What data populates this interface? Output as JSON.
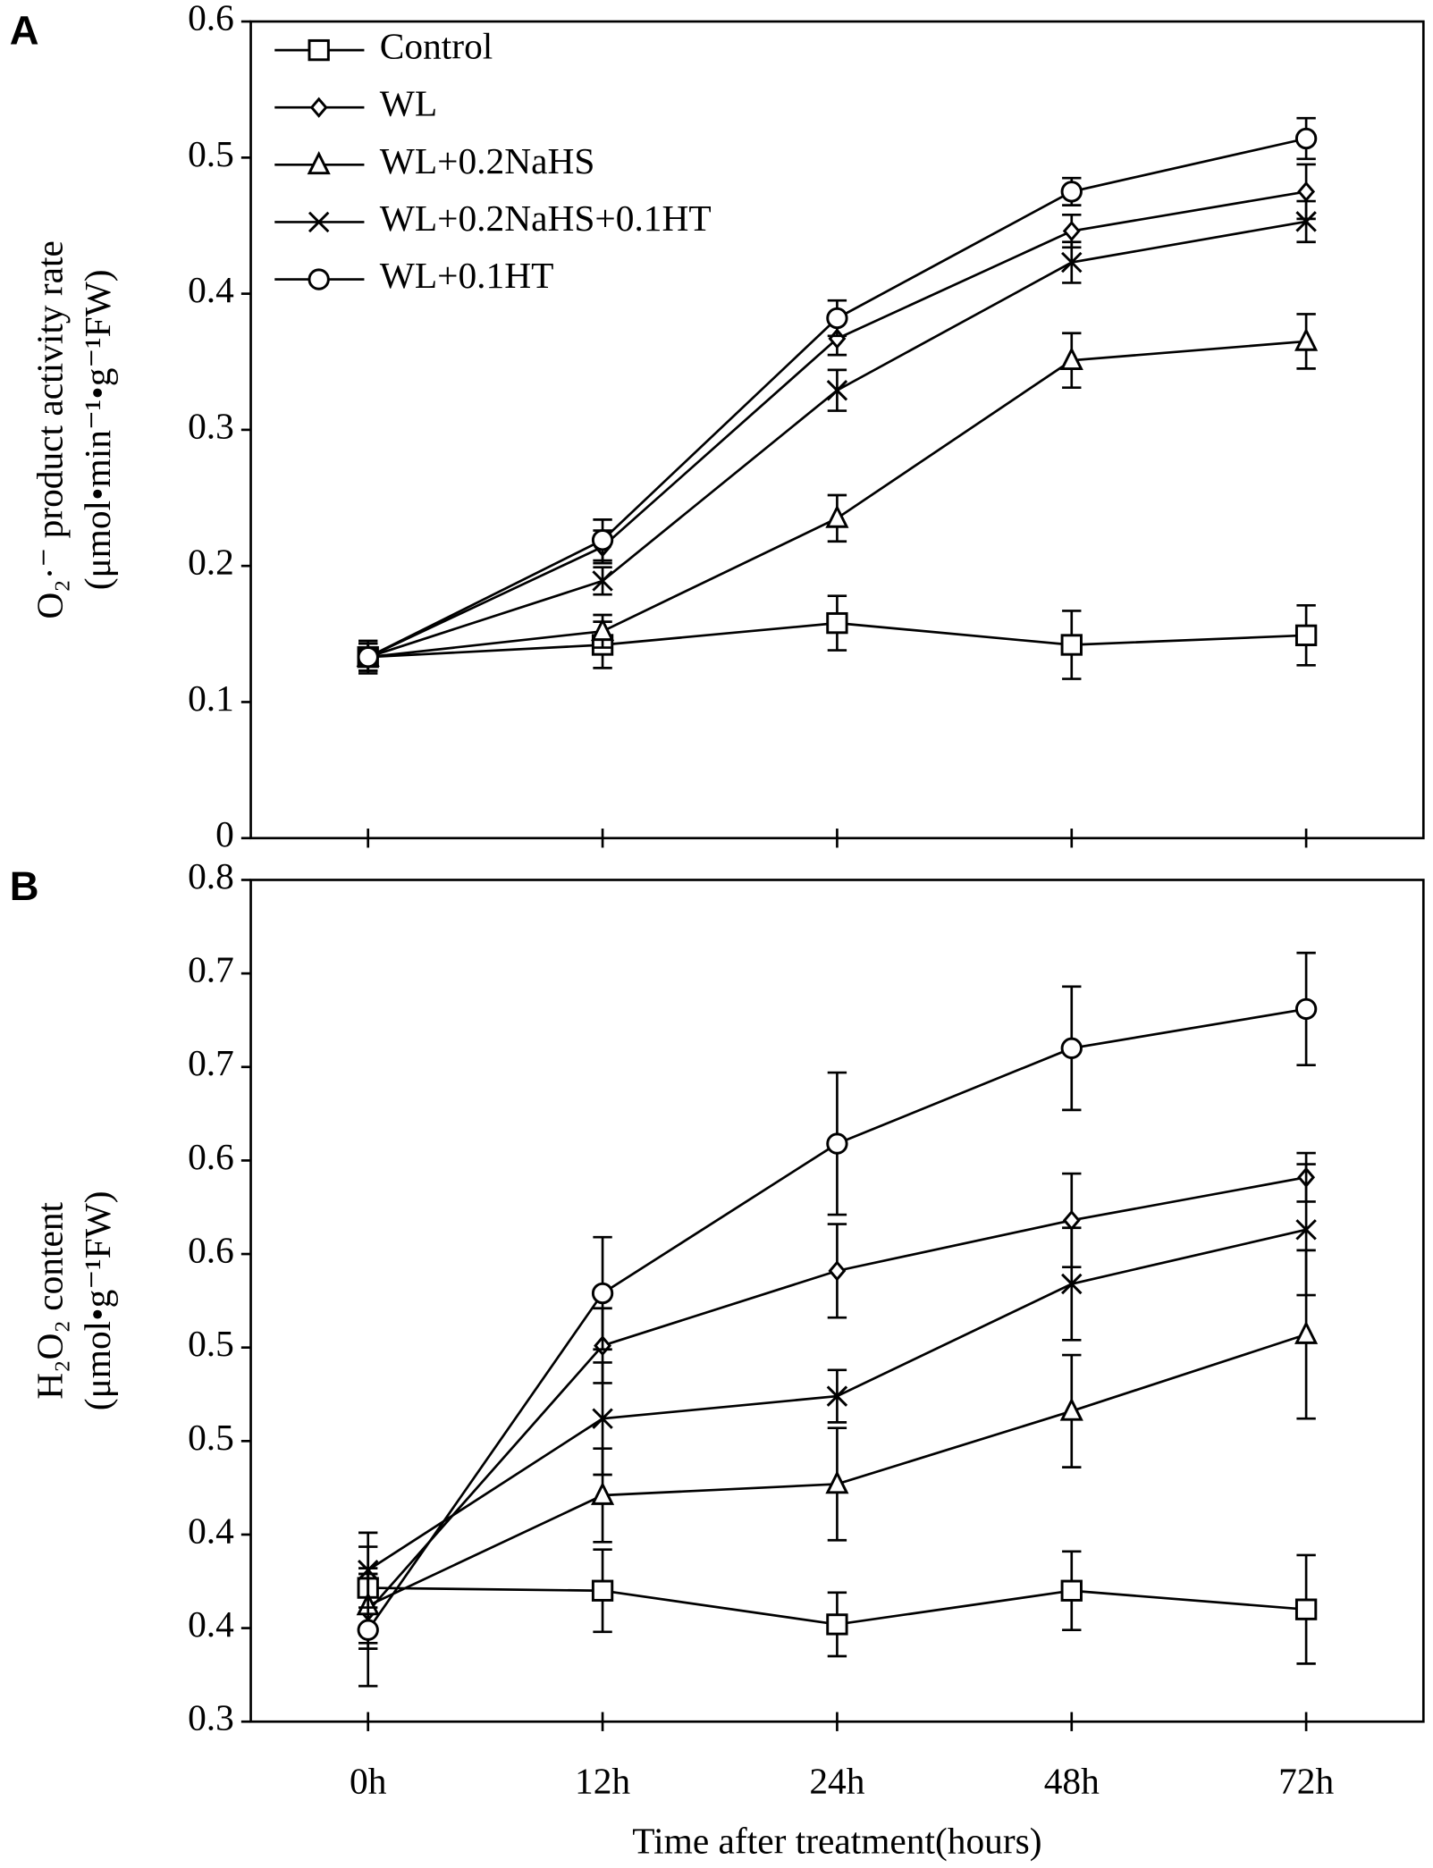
{
  "chart_data": [
    {
      "type": "line",
      "panel": "A",
      "ylabel": [
        "O₂·⁻ product activity rate",
        "(μmol•min⁻¹•g⁻¹FW)"
      ],
      "categories": [
        null,
        null,
        null,
        null,
        null
      ],
      "ylim": [
        0,
        0.6
      ],
      "yticks": [
        0,
        0.1,
        0.2,
        0.3,
        0.4,
        0.5,
        0.6
      ],
      "legend": "upper left",
      "series": [
        {
          "name": "Control",
          "color": "#000000",
          "marker": "square",
          "values": [
            0.133,
            0.142,
            0.158,
            0.142,
            0.149
          ],
          "errors": [
            0.012,
            0.017,
            0.02,
            0.025,
            0.022
          ]
        },
        {
          "name": "WL",
          "color": "#000000",
          "marker": "diamond",
          "values": [
            0.133,
            0.214,
            0.367,
            0.446,
            0.475
          ],
          "errors": [
            0.01,
            0.012,
            0.012,
            0.012,
            0.02
          ]
        },
        {
          "name": "WL+0.2NaHS",
          "color": "#000000",
          "marker": "triangle",
          "values": [
            0.133,
            0.152,
            0.235,
            0.351,
            0.365
          ],
          "errors": [
            0.005,
            0.012,
            0.017,
            0.02,
            0.02
          ]
        },
        {
          "name": "WL+0.2NaHS+0.1HT",
          "color": "#000000",
          "marker": "x",
          "values": [
            0.133,
            0.189,
            0.329,
            0.423,
            0.453
          ],
          "errors": [
            0.01,
            0.01,
            0.015,
            0.015,
            0.015
          ]
        },
        {
          "name": "WL+0.1HT",
          "color": "#000000",
          "marker": "circle",
          "values": [
            0.133,
            0.219,
            0.382,
            0.475,
            0.514
          ],
          "errors": [
            0.01,
            0.015,
            0.013,
            0.01,
            0.015
          ]
        }
      ]
    },
    {
      "type": "line",
      "panel": "B",
      "ylabel": [
        "H₂O₂ content",
        "(μmol•g⁻¹FW)"
      ],
      "xlabel": "Time after treatment(hours)",
      "categories": [
        "0h",
        "12h",
        "24h",
        "48h",
        "72h"
      ],
      "ylim": [
        0.3,
        0.75
      ],
      "yticks": [
        0.3,
        {
          "value": 0.35,
          "label": "0.4"
        },
        0.4,
        {
          "value": 0.45,
          "label": "0.5"
        },
        0.5,
        {
          "value": 0.55,
          "label": "0.6"
        },
        0.6,
        {
          "value": 0.65,
          "label": "0.7"
        },
        0.7,
        {
          "value": 0.75,
          "label": "0.8"
        }
      ],
      "series": [
        {
          "color": "#000000",
          "marker": "square",
          "values": [
            0.3715,
            0.37,
            0.352,
            0.37,
            0.36
          ],
          "errors": [
            0.022,
            0.022,
            0.017,
            0.021,
            0.029
          ]
        },
        {
          "color": "#000000",
          "marker": "diamond",
          "values": [
            0.359,
            0.501,
            0.541,
            0.568,
            0.591
          ],
          "errors": [
            0.02,
            0.02,
            0.025,
            0.025,
            0.013
          ]
        },
        {
          "color": "#000000",
          "marker": "triangle",
          "values": [
            0.362,
            0.421,
            0.427,
            0.466,
            0.507
          ],
          "errors": [
            0.02,
            0.025,
            0.03,
            0.03,
            0.045
          ]
        },
        {
          "color": "#000000",
          "marker": "x",
          "values": [
            0.381,
            0.462,
            0.474,
            0.534,
            0.563
          ],
          "errors": [
            0.02,
            0.03,
            0.014,
            0.03,
            0.035
          ]
        },
        {
          "color": "#000000",
          "marker": "circle",
          "values": [
            0.349,
            0.529,
            0.609,
            0.66,
            0.681
          ],
          "errors": [
            0.03,
            0.03,
            0.038,
            0.033,
            0.03
          ]
        }
      ]
    }
  ]
}
